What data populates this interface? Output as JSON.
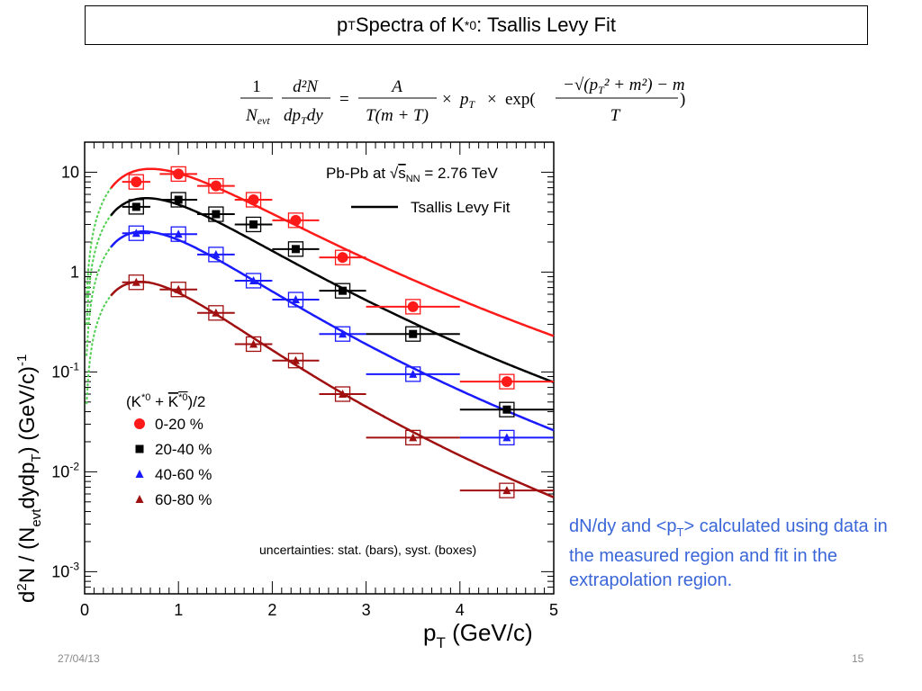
{
  "slide": {
    "title_main": "p",
    "title_sub": "T",
    "title_mid": " Spectra of K",
    "title_sup": "*0",
    "title_end": ": Tsallis Levy Fit",
    "note_pre": "dN/dy and <p",
    "note_sub": "T",
    "note_post": "> calculated using data in the measured region and fit in the extrapolation region.",
    "date": "27/04/13",
    "page": "15"
  },
  "formula": {
    "lhs_num": "1",
    "lhs_den": "N",
    "lhs_den_sub": "evt",
    "deriv_num": "d²N",
    "deriv_den": "dp",
    "deriv_den_sub": "T",
    "deriv_den_post": "dy",
    "eq": "=",
    "rhs_num": "A",
    "rhs_den": "T(m + T)",
    "times1": "×",
    "pt": "p",
    "pt_sub": "T",
    "times2": "×",
    "exp": "exp(",
    "exp_num": "−√(p",
    "exp_num_sub": "T",
    "exp_num_post": "² + m²) − m",
    "exp_den": "T",
    "exp_close": ")"
  },
  "colors": {
    "red": "#ff1a1a",
    "black": "#000000",
    "blue": "#1a1aff",
    "darkred": "#a01010",
    "extrap": "#4fcf4f",
    "note_blue": "#3a66d8"
  },
  "chart_data": {
    "type": "scatter",
    "yscale": "log",
    "xlim": [
      0,
      5
    ],
    "ylim": [
      0.0006,
      20
    ],
    "xlabel": "p_T (GeV/c)",
    "ylabel": "d²N / (N_evt dydp_T) (GeV/c)⁻¹",
    "xticks": [
      "0",
      "1",
      "2",
      "3",
      "4",
      "5"
    ],
    "yticks": [
      {
        "base": "10",
        "exp": "-3",
        "value": 0.001
      },
      {
        "base": "10",
        "exp": "-2",
        "value": 0.01
      },
      {
        "base": "10",
        "exp": "-1",
        "value": 0.1
      },
      {
        "base": "1",
        "exp": "",
        "value": 1
      },
      {
        "base": "10",
        "exp": "",
        "value": 10
      }
    ],
    "header_text": "Pb-Pb at √s_NN = 2.76 TeV",
    "fit_label": "Tsallis Levy Fit",
    "legend_title": "(K*0 + K̄*0)/2",
    "uncertainty_note": "uncertainties: stat. (bars), syst. (boxes)",
    "series": [
      {
        "name": "0-20 %",
        "color": "#ff1a1a",
        "marker": "circle",
        "x": [
          0.55,
          1.0,
          1.4,
          1.8,
          2.25,
          2.75,
          3.5,
          4.5
        ],
        "xerr": [
          0.15,
          0.2,
          0.2,
          0.2,
          0.25,
          0.25,
          0.5,
          0.5
        ],
        "y": [
          8.0,
          9.6,
          7.3,
          5.3,
          3.3,
          1.4,
          0.45,
          0.08
        ]
      },
      {
        "name": "20-40 %",
        "color": "#000000",
        "marker": "square",
        "x": [
          0.55,
          1.0,
          1.4,
          1.8,
          2.25,
          2.75,
          3.5,
          4.5
        ],
        "xerr": [
          0.15,
          0.2,
          0.2,
          0.2,
          0.25,
          0.25,
          0.5,
          0.5
        ],
        "y": [
          4.5,
          5.3,
          3.8,
          3.0,
          1.7,
          0.65,
          0.24,
          0.042
        ]
      },
      {
        "name": "40-60 %",
        "color": "#1a1aff",
        "marker": "triangle",
        "x": [
          0.55,
          1.0,
          1.4,
          1.8,
          2.25,
          2.75,
          3.5,
          4.5
        ],
        "xerr": [
          0.15,
          0.2,
          0.2,
          0.2,
          0.25,
          0.25,
          0.5,
          0.5
        ],
        "y": [
          2.45,
          2.4,
          1.5,
          0.82,
          0.53,
          0.24,
          0.095,
          0.022
        ]
      },
      {
        "name": "60-80 %",
        "color": "#a01010",
        "marker": "triangle",
        "x": [
          0.55,
          1.0,
          1.4,
          1.8,
          2.25,
          2.75,
          3.5,
          4.5
        ],
        "xerr": [
          0.15,
          0.2,
          0.2,
          0.2,
          0.25,
          0.25,
          0.5,
          0.5
        ],
        "y": [
          0.79,
          0.67,
          0.39,
          0.19,
          0.13,
          0.06,
          0.022,
          0.0065
        ]
      }
    ],
    "fits": [
      {
        "name": "0-20 %",
        "color": "#ff1a1a",
        "A": 10.8,
        "T": 0.4
      },
      {
        "name": "20-40 %",
        "color": "#000000",
        "A": 5.5,
        "T": 0.36
      },
      {
        "name": "40-60 %",
        "color": "#1a1aff",
        "A": 2.55,
        "T": 0.33
      },
      {
        "name": "60-80 %",
        "color": "#a01010",
        "A": 0.8,
        "T": 0.3
      }
    ],
    "fit_xrange": [
      0.3,
      5
    ],
    "extrap_xrange": [
      0.0,
      0.3
    ]
  }
}
